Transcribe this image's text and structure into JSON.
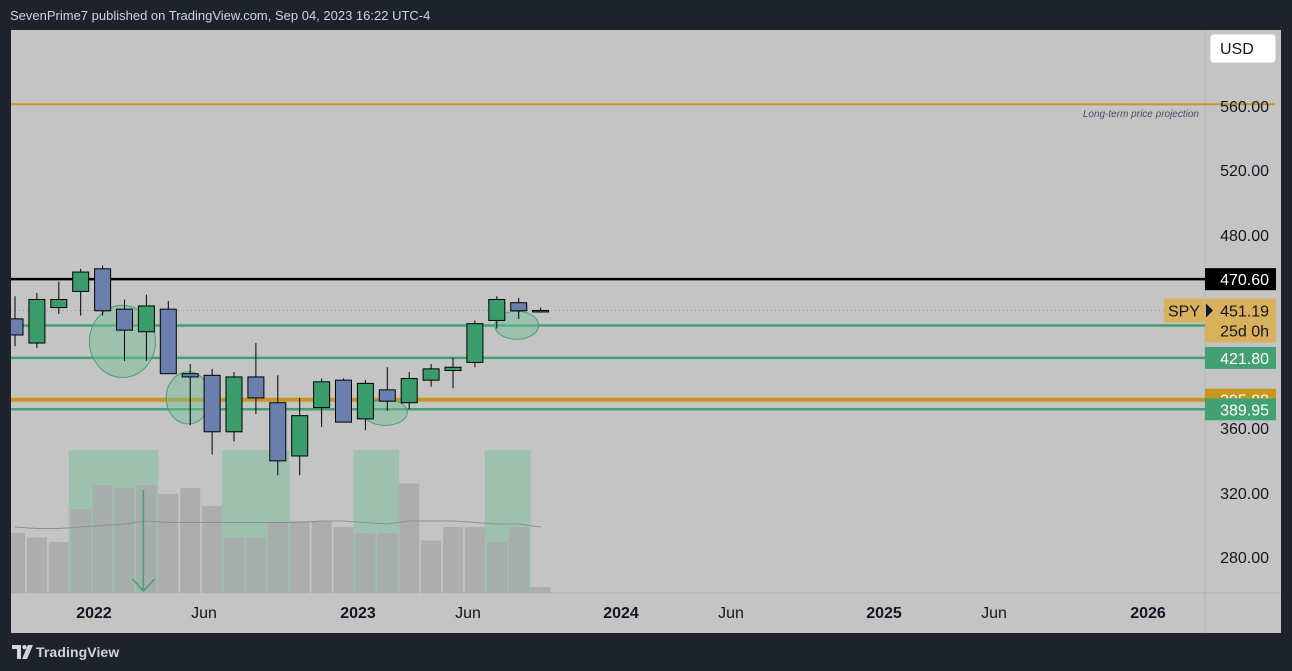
{
  "header": {
    "publish_line": "SevenPrime7 published on TradingView.com, Sep 04, 2023 16:22 UTC-4"
  },
  "footer": {
    "brand": "TradingView"
  },
  "toolbar": {
    "currency": "USD"
  },
  "colors": {
    "chart_bg": "#c4c4c4",
    "up_candle": "#3a9c6a",
    "down_candle": "#6b7fae",
    "green_line": "#43a072",
    "gold_line": "#c8961e",
    "black_line": "#000000",
    "volume_gray": "#a9a9a9",
    "volume_highlight": "#6fbf94"
  },
  "chart_data": {
    "type": "candlestick",
    "symbol": "SPY",
    "timeframe_countdown": "25d 0h",
    "last_price": 451.19,
    "y_axis": {
      "ticks": [
        "560.00",
        "520.00",
        "480.00",
        "360.00",
        "320.00",
        "280.00"
      ],
      "range": [
        260,
        600
      ]
    },
    "x_axis": {
      "ticks": [
        "2022",
        "Jun",
        "2023",
        "Jun",
        "2024",
        "Jun",
        "2025",
        "Jun",
        "2026"
      ],
      "bold": [
        "2022",
        "2023",
        "2024",
        "2025",
        "2026"
      ]
    },
    "candles": [
      {
        "o": 446,
        "h": 460,
        "l": 429,
        "c": 436
      },
      {
        "o": 431,
        "h": 462,
        "l": 428,
        "c": 458
      },
      {
        "o": 453,
        "h": 469,
        "l": 449,
        "c": 458
      },
      {
        "o": 463,
        "h": 477,
        "l": 448,
        "c": 475
      },
      {
        "o": 477,
        "h": 479,
        "l": 448,
        "c": 451
      },
      {
        "o": 452,
        "h": 458,
        "l": 420,
        "c": 439
      },
      {
        "o": 438,
        "h": 461,
        "l": 420,
        "c": 454
      },
      {
        "o": 452,
        "h": 457,
        "l": 413,
        "c": 412
      },
      {
        "o": 412,
        "h": 418,
        "l": 380,
        "c": 410
      },
      {
        "o": 411,
        "h": 415,
        "l": 362,
        "c": 376
      },
      {
        "o": 376,
        "h": 413,
        "l": 370,
        "c": 410
      },
      {
        "o": 410,
        "h": 431,
        "l": 387,
        "c": 397
      },
      {
        "o": 394,
        "h": 411,
        "l": 349,
        "c": 358
      },
      {
        "o": 361,
        "h": 397,
        "l": 349,
        "c": 386
      },
      {
        "o": 391,
        "h": 409,
        "l": 379,
        "c": 407
      },
      {
        "o": 408,
        "h": 409,
        "l": 383,
        "c": 382
      },
      {
        "o": 384,
        "h": 408,
        "l": 377,
        "c": 406
      },
      {
        "o": 402,
        "h": 416,
        "l": 389,
        "c": 395
      },
      {
        "o": 394,
        "h": 413,
        "l": 390,
        "c": 409
      },
      {
        "o": 408,
        "h": 418,
        "l": 404,
        "c": 415
      },
      {
        "o": 414,
        "h": 422,
        "l": 403,
        "c": 416
      },
      {
        "o": 419,
        "h": 445,
        "l": 416,
        "c": 443
      },
      {
        "o": 445,
        "h": 460,
        "l": 440,
        "c": 458
      },
      {
        "o": 456,
        "h": 459,
        "l": 446,
        "c": 451
      },
      {
        "o": 451,
        "h": 453,
        "l": 450,
        "c": 451.19
      }
    ],
    "volume": [
      0.4,
      0.37,
      0.34,
      0.56,
      0.72,
      0.7,
      0.72,
      0.66,
      0.7,
      0.58,
      0.37,
      0.37,
      0.47,
      0.48,
      0.48,
      0.44,
      0.4,
      0.4,
      0.73,
      0.35,
      0.44,
      0.44,
      0.34,
      0.44,
      0.04
    ],
    "volume_ma": [
      0.44,
      0.43,
      0.43,
      0.44,
      0.45,
      0.46,
      0.48,
      0.47,
      0.47,
      0.47,
      0.47,
      0.47,
      0.47,
      0.47,
      0.48,
      0.48,
      0.47,
      0.46,
      0.48,
      0.48,
      0.48,
      0.47,
      0.46,
      0.46,
      0.44
    ],
    "horizontal_lines": [
      {
        "price": 579,
        "color": "gold",
        "label": "Long-term price projection"
      },
      {
        "price": 470.6,
        "color": "black",
        "badge": "470.60"
      },
      {
        "price": 441.84,
        "color": "green",
        "badge": "441.84"
      },
      {
        "price": 421.8,
        "color": "green",
        "badge": "421.80"
      },
      {
        "price": 395.88,
        "color": "gold",
        "badge": "395.88"
      },
      {
        "price": 389.95,
        "color": "green",
        "badge": "389.95"
      }
    ],
    "ellipses": [
      {
        "candle": 5,
        "price": 432,
        "rx": 33,
        "ry": 36
      },
      {
        "candle": 8,
        "price": 397,
        "rx": 22,
        "ry": 26
      },
      {
        "candle": 17,
        "price": 388,
        "rx": 22,
        "ry": 13
      },
      {
        "candle": 23,
        "price": 442,
        "rx": 22,
        "ry": 14
      }
    ],
    "volume_zones": [
      [
        3,
        6
      ],
      [
        10,
        12
      ],
      [
        16,
        17
      ],
      [
        22,
        23
      ]
    ],
    "arrow_candle": 6
  }
}
